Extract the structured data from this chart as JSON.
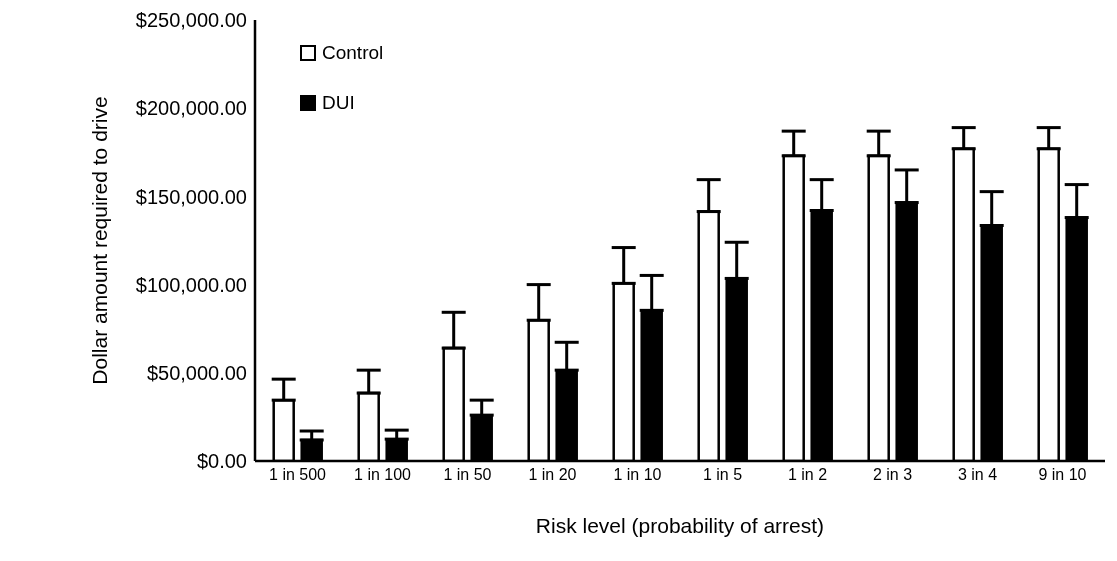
{
  "chart_data": {
    "type": "bar",
    "xlabel": "Risk level (probability of arrest)",
    "ylabel": "Dollar amount required to drive",
    "categories": [
      "1 in 500",
      "1 in 100",
      "1 in 50",
      "1 in 20",
      "1 in 10",
      "1 in 5",
      "1 in 2",
      "2 in 3",
      "3 in 4",
      "9 in 10"
    ],
    "series": [
      {
        "name": "Control",
        "color": "#ffffff",
        "values": [
          34500,
          38500,
          64000,
          79800,
          100700,
          141400,
          173000,
          173000,
          177000,
          177000
        ],
        "errors": [
          [
            34500,
            46400
          ],
          [
            38500,
            51500
          ],
          [
            64000,
            84300
          ],
          [
            79800,
            100000
          ],
          [
            100700,
            121000
          ],
          [
            141400,
            159500
          ],
          [
            173000,
            187000
          ],
          [
            173000,
            187000
          ],
          [
            177000,
            189000
          ],
          [
            177000,
            189000
          ]
        ]
      },
      {
        "name": "DUI",
        "color": "#000000",
        "values": [
          11900,
          12400,
          26000,
          51500,
          85400,
          103500,
          142000,
          146500,
          133500,
          138000
        ],
        "errors": [
          [
            11900,
            17000
          ],
          [
            12400,
            17500
          ],
          [
            26000,
            34500
          ],
          [
            51500,
            67300
          ],
          [
            85400,
            105200
          ],
          [
            103500,
            124000
          ],
          [
            142000,
            159500
          ],
          [
            146500,
            165000
          ],
          [
            133500,
            152700
          ],
          [
            138000,
            156700
          ]
        ]
      }
    ],
    "ylim": [
      0,
      250000
    ],
    "yticks": [
      {
        "value": 0,
        "label": "$0.00"
      },
      {
        "value": 50000,
        "label": "$50,000.00"
      },
      {
        "value": 100000,
        "label": "$100,000.00"
      },
      {
        "value": 150000,
        "label": "$150,000.00"
      },
      {
        "value": 200000,
        "label": "$200,000.00"
      },
      {
        "value": 250000,
        "label": "$250,000.00"
      }
    ],
    "grid": false,
    "legend": "top left"
  }
}
